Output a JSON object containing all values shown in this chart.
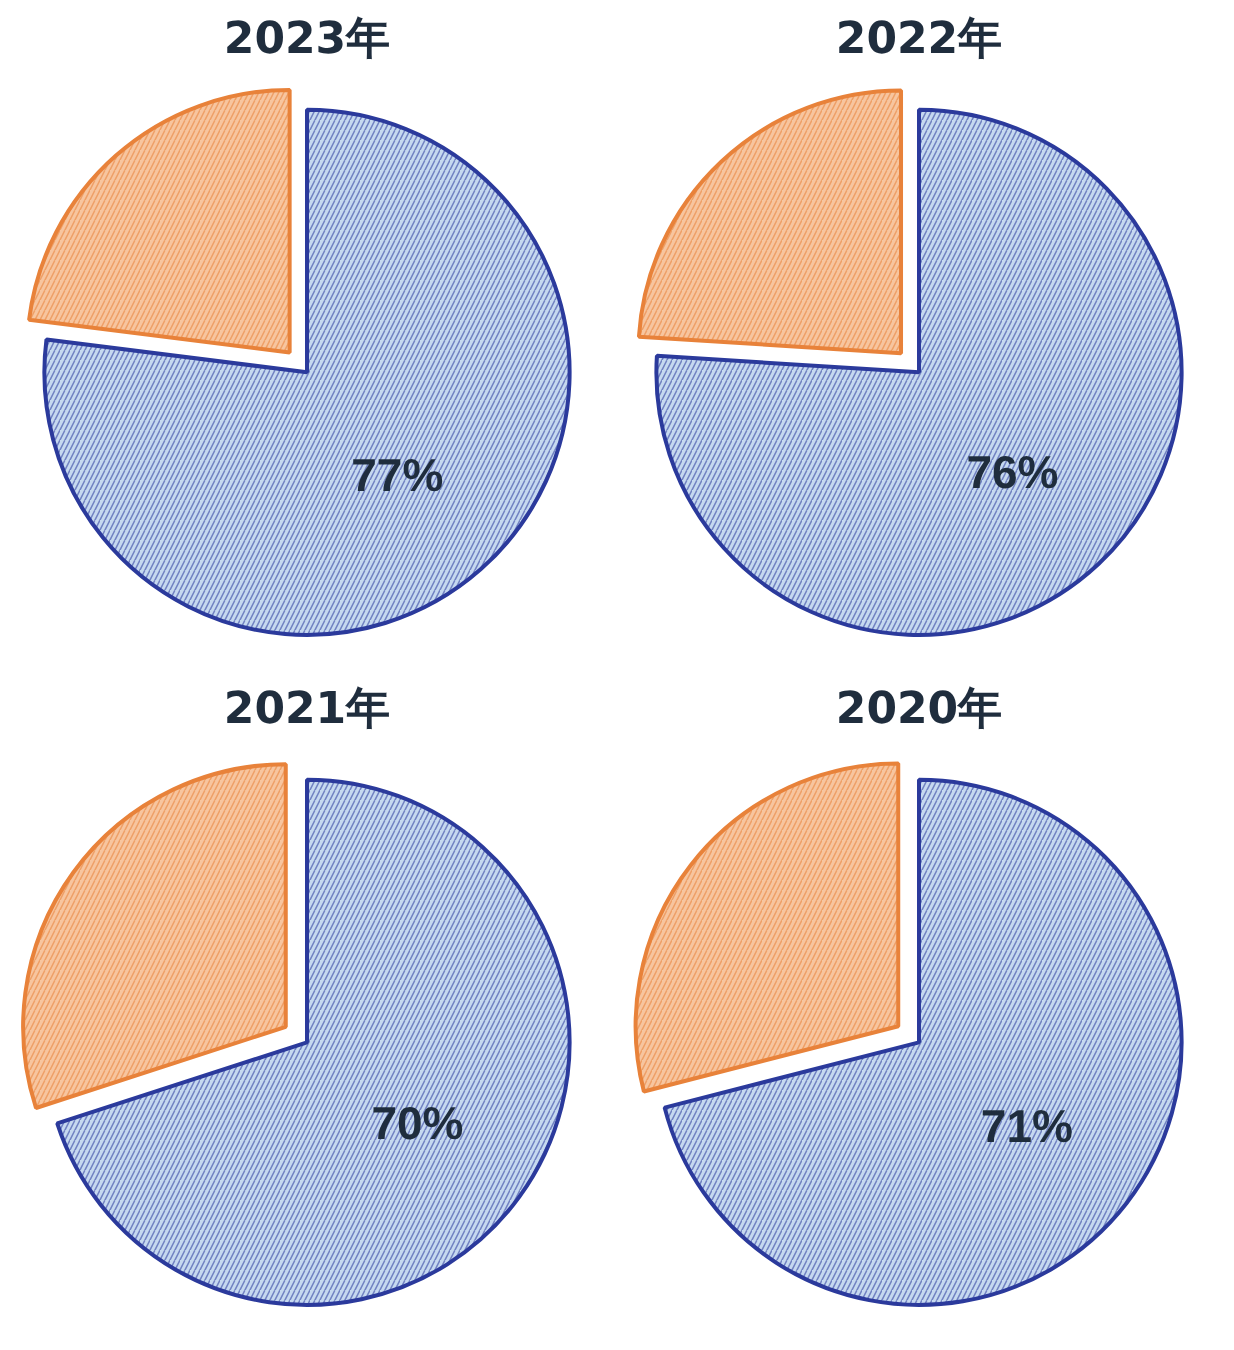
{
  "chart_data": [
    {
      "type": "pie",
      "title": "2023年",
      "categories": [
        null,
        null
      ],
      "values": [
        77,
        23
      ],
      "colors": [
        "#c6d9f0",
        "#f7c59f"
      ],
      "value_labels": [
        "77%",
        null
      ]
    },
    {
      "type": "pie",
      "title": "2022年",
      "categories": [
        null,
        null
      ],
      "values": [
        76,
        24
      ],
      "colors": [
        "#c6d9f0",
        "#f7c59f"
      ],
      "value_labels": [
        "76%",
        null
      ]
    },
    {
      "type": "pie",
      "title": "2021年",
      "categories": [
        null,
        null
      ],
      "values": [
        70,
        30
      ],
      "colors": [
        "#c6d9f0",
        "#f7c59f"
      ],
      "value_labels": [
        "70%",
        null
      ]
    },
    {
      "type": "pie",
      "title": "2020年",
      "categories": [
        null,
        null
      ],
      "values": [
        71,
        29
      ],
      "colors": [
        "#c6d9f0",
        "#f7c59f"
      ],
      "value_labels": [
        "71%",
        null
      ]
    }
  ]
}
